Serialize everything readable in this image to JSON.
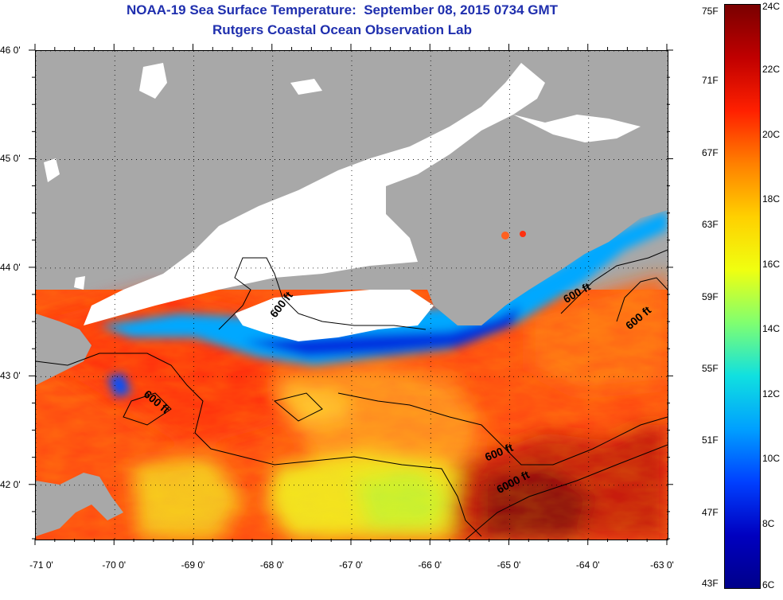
{
  "title": {
    "line1": "NOAA-19 Sea Surface Temperature:  September 08, 2015 0734 GMT",
    "line2": "Rutgers Coastal Ocean Observation Lab"
  },
  "map": {
    "x_axis": {
      "range": [
        -71,
        -63
      ],
      "ticks": [
        {
          "value": -71,
          "label": "-71 0'"
        },
        {
          "value": -70,
          "label": "-70 0'"
        },
        {
          "value": -69,
          "label": "-69 0'"
        },
        {
          "value": -68,
          "label": "-68 0'"
        },
        {
          "value": -67,
          "label": "-67 0'"
        },
        {
          "value": -66,
          "label": "-66 0'"
        },
        {
          "value": -65,
          "label": "-65 0'"
        },
        {
          "value": -64,
          "label": "-64 0'"
        },
        {
          "value": -63,
          "label": "-63 0'"
        }
      ]
    },
    "y_axis": {
      "range": [
        41.5,
        46
      ],
      "ticks": [
        {
          "value": 46,
          "label": "46 0'"
        },
        {
          "value": 45,
          "label": "45 0'"
        },
        {
          "value": 44,
          "label": "44 0'"
        },
        {
          "value": 43,
          "label": "43 0'"
        },
        {
          "value": 42,
          "label": "42 0'"
        }
      ]
    },
    "grid": "dotted",
    "colors": {
      "land": "#a8a8a8",
      "cloud": "#ffffff",
      "contour": "#000000"
    },
    "contour_labels": [
      {
        "text": "600 ft",
        "lon": -68.0,
        "lat": 43.55,
        "angle": -52
      },
      {
        "text": "600 ft",
        "lon": -69.6,
        "lat": 42.85,
        "angle": 40
      },
      {
        "text": "600 ft",
        "lon": -65.3,
        "lat": 42.25,
        "angle": -22
      },
      {
        "text": "6000 ft",
        "lon": -65.15,
        "lat": 41.95,
        "angle": -28
      },
      {
        "text": "600 ft",
        "lon": -64.3,
        "lat": 43.7,
        "angle": -30
      },
      {
        "text": "600 ft",
        "lon": -63.5,
        "lat": 43.45,
        "angle": -40
      }
    ]
  },
  "colorbar": {
    "range_c": [
      6,
      24
    ],
    "fahrenheit_labels": [
      {
        "value_f": 75,
        "label": "75F"
      },
      {
        "value_f": 71,
        "label": "71F"
      },
      {
        "value_f": 67,
        "label": "67F"
      },
      {
        "value_f": 63,
        "label": "63F"
      },
      {
        "value_f": 59,
        "label": "59F"
      },
      {
        "value_f": 55,
        "label": "55F"
      },
      {
        "value_f": 51,
        "label": "51F"
      },
      {
        "value_f": 47,
        "label": "47F"
      },
      {
        "value_f": 43,
        "label": "43F"
      }
    ],
    "celsius_labels": [
      {
        "value_c": 24,
        "label": "24C"
      },
      {
        "value_c": 22,
        "label": "22C"
      },
      {
        "value_c": 20,
        "label": "20C"
      },
      {
        "value_c": 18,
        "label": "18C"
      },
      {
        "value_c": 16,
        "label": "16C"
      },
      {
        "value_c": 14,
        "label": "14C"
      },
      {
        "value_c": 12,
        "label": "12C"
      },
      {
        "value_c": 10,
        "label": "10C"
      },
      {
        "value_c": 8,
        "label": "8C"
      },
      {
        "value_c": 6,
        "label": "6C"
      }
    ],
    "gradient_stops": [
      "#7a0000",
      "#c00000",
      "#ff2000",
      "#ff8000",
      "#ffd000",
      "#f0ff10",
      "#80ff70",
      "#10e0e0",
      "#00a0ff",
      "#0040ff",
      "#0000c0",
      "#00008a"
    ]
  }
}
